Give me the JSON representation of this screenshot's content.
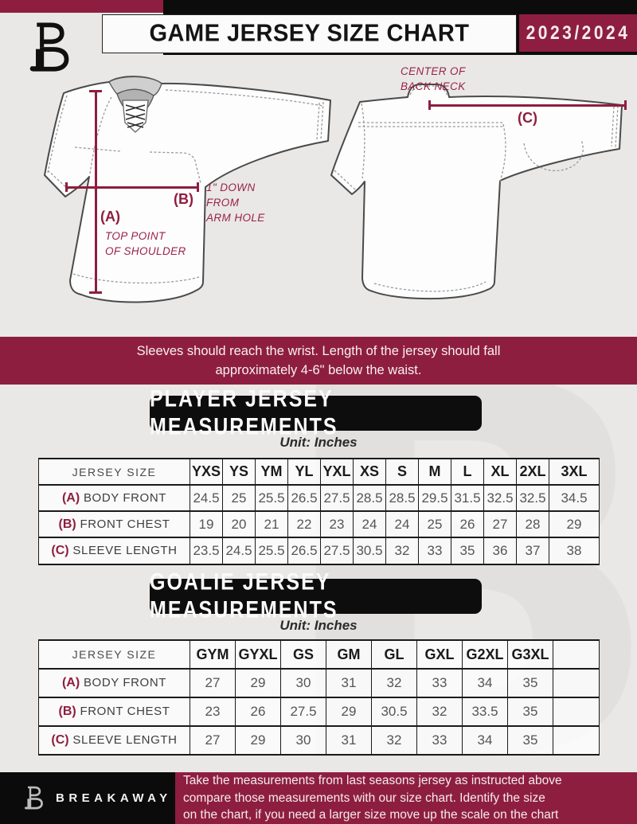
{
  "header": {
    "title": "GAME JERSEY SIZE CHART",
    "season": "2023/2024"
  },
  "diagram": {
    "front": {
      "label_a": "(A)",
      "label_b": "(B)",
      "note_a": "TOP POINT\nOF SHOULDER",
      "note_b": "1\" DOWN\nFROM\nARM HOLE"
    },
    "back": {
      "label_c": "(C)",
      "note_c": "CENTER OF\nBACK NECK"
    }
  },
  "banner": {
    "text": "Sleeves should reach the wrist. Length of the jersey should fall\napproximately 4-6\" below the waist."
  },
  "sections": {
    "player": {
      "title": "PLAYER JERSEY MEASUREMENTS",
      "unit": "Unit: Inches",
      "corner_label": "JERSEY SIZE",
      "columns": [
        "YXS",
        "YS",
        "YM",
        "YL",
        "YXL",
        "XS",
        "S",
        "M",
        "L",
        "XL",
        "2XL",
        "3XL"
      ],
      "rows": [
        {
          "key": "(A)",
          "label": "BODY FRONT",
          "values": [
            "24.5",
            "25",
            "25.5",
            "26.5",
            "27.5",
            "28.5",
            "28.5",
            "29.5",
            "31.5",
            "32.5",
            "32.5",
            "34.5"
          ]
        },
        {
          "key": "(B)",
          "label": "FRONT CHEST",
          "values": [
            "19",
            "20",
            "21",
            "22",
            "23",
            "24",
            "24",
            "25",
            "26",
            "27",
            "28",
            "29"
          ]
        },
        {
          "key": "(C)",
          "label": "SLEEVE LENGTH",
          "values": [
            "23.5",
            "24.5",
            "25.5",
            "26.5",
            "27.5",
            "30.5",
            "32",
            "33",
            "35",
            "36",
            "37",
            "38"
          ]
        }
      ]
    },
    "goalie": {
      "title": "GOALIE JERSEY MEASUREMENTS",
      "unit": "Unit: Inches",
      "corner_label": "JERSEY SIZE",
      "columns": [
        "GYM",
        "GYXL",
        "GS",
        "GM",
        "GL",
        "GXL",
        "G2XL",
        "G3XL",
        ""
      ],
      "rows": [
        {
          "key": "(A)",
          "label": "BODY FRONT",
          "values": [
            "27",
            "29",
            "30",
            "31",
            "32",
            "33",
            "34",
            "35",
            ""
          ]
        },
        {
          "key": "(B)",
          "label": "FRONT CHEST",
          "values": [
            "23",
            "26",
            "27.5",
            "29",
            "30.5",
            "32",
            "33.5",
            "35",
            ""
          ]
        },
        {
          "key": "(C)",
          "label": "SLEEVE LENGTH",
          "values": [
            "27",
            "29",
            "30",
            "31",
            "32",
            "33",
            "34",
            "35",
            ""
          ]
        }
      ]
    }
  },
  "footer": {
    "brand": "BREAKAWAY",
    "text": "Take the measurements from last seasons jersey as instructed above\ncompare those measurements  with our size chart. Identify the size\non the chart, if you need a larger size move up the scale on the chart"
  },
  "watermark": {
    "letter": "B"
  },
  "colors": {
    "maroon": "#8E1E3F",
    "black": "#0C0C0C",
    "background": "#E9E8E6"
  }
}
